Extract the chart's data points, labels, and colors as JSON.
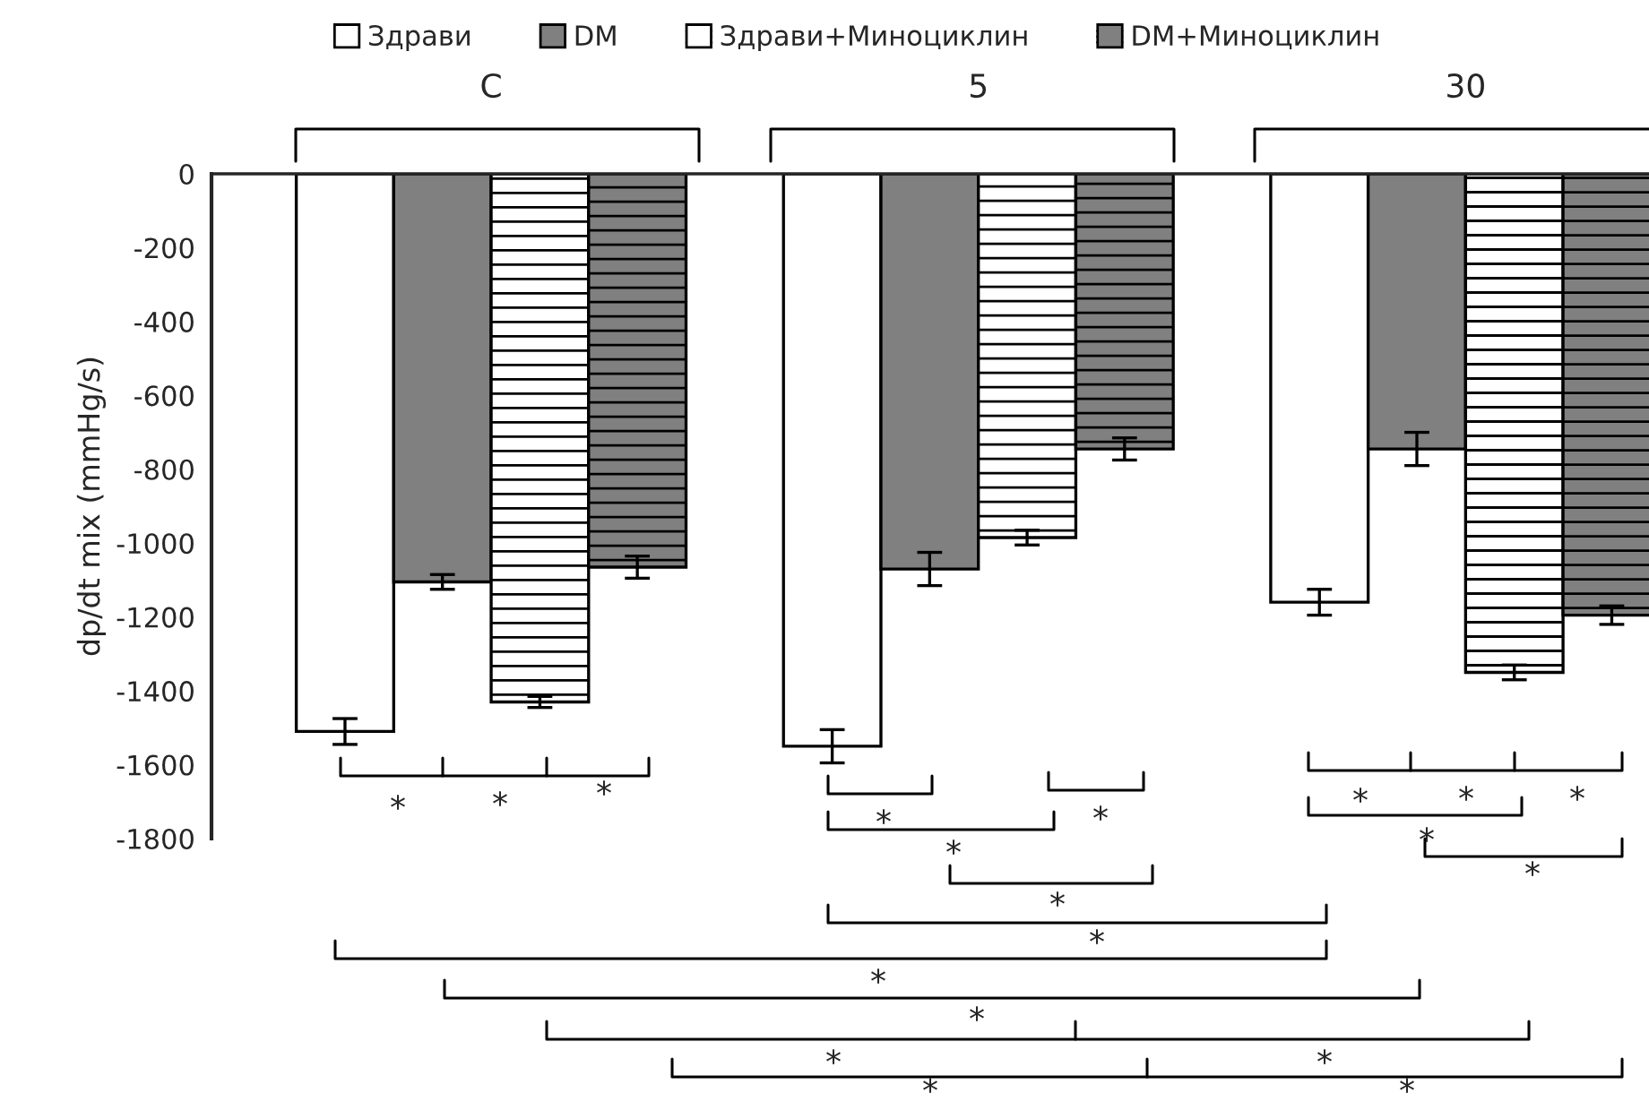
{
  "chart_data": {
    "type": "bar",
    "ylabel": "dp/dt mix (mmHg/s)",
    "categories": [
      "C",
      "5",
      "30"
    ],
    "series": [
      {
        "name": "Здрави",
        "color": "#ffffff",
        "values": [
          -1510,
          -1550,
          -1160
        ],
        "errors": [
          35,
          45,
          35
        ]
      },
      {
        "name": "DM",
        "color": "#808080",
        "values": [
          -1105,
          -1070,
          -745
        ],
        "errors": [
          20,
          45,
          45
        ]
      },
      {
        "name": "Здрави+Миноциклин",
        "color": "#ffffff",
        "values": [
          -1430,
          -985,
          -1350
        ],
        "errors": [
          15,
          20,
          20
        ]
      },
      {
        "name": "DM+Миноциклин",
        "color": "#808080",
        "values": [
          -1065,
          -745,
          -1195
        ],
        "errors": [
          30,
          30,
          25
        ]
      }
    ],
    "ylim": [
      -1800,
      0
    ],
    "yticks": [
      -1800,
      -1600,
      -1400,
      -1200,
      -1000,
      -800,
      -600,
      -400,
      -200,
      0
    ],
    "legend": "top",
    "grid": false,
    "annotations": [
      "*",
      "*",
      "*",
      "*",
      "*",
      "*",
      "*",
      "*",
      "*",
      "*",
      "*",
      "*",
      "*",
      "*",
      "*",
      "*",
      "*",
      "*",
      "*"
    ]
  }
}
